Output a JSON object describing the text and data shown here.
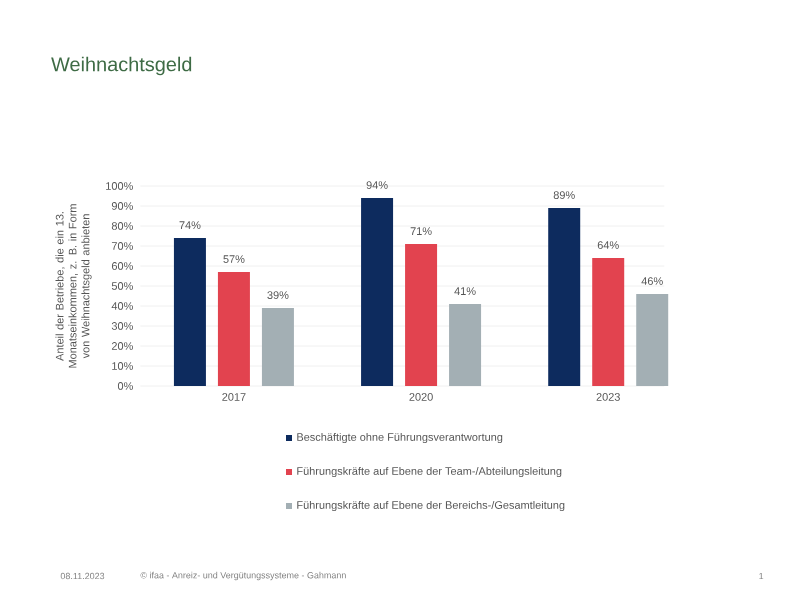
{
  "chart_data": {
    "type": "bar",
    "title": "Weihnachtsgeld",
    "ylabel": "Anteil der Betriebe, die ein 13. Monatseinkommen, z. B. in Form von Weihnachtsgeld anbieten",
    "categories": [
      "2017",
      "2020",
      "2023"
    ],
    "series": [
      {
        "name": "Beschäftigte ohne Führungsverantwortung",
        "color": "#0d2b5e",
        "values": [
          74,
          94,
          89
        ],
        "value_labels": [
          "74%",
          "94%",
          "89%"
        ]
      },
      {
        "name": "Führungskräfte auf Ebene der Team-/Abteilungsleitung",
        "color": "#e2434f",
        "values": [
          57,
          71,
          64
        ],
        "value_labels": [
          "57%",
          "71%",
          "64%"
        ]
      },
      {
        "name": "Führungskräfte auf Ebene der Bereichs-/Gesamtleitung",
        "color": "#a3afb4",
        "values": [
          39,
          41,
          46
        ],
        "value_labels": [
          "39%",
          "41%",
          "46%"
        ]
      }
    ],
    "ylim": [
      0,
      100
    ],
    "yticks": [
      {
        "value": 0,
        "label": "0%"
      },
      {
        "value": 10,
        "label": "10%"
      },
      {
        "value": 20,
        "label": "20%"
      },
      {
        "value": 30,
        "label": "30%"
      },
      {
        "value": 40,
        "label": "40%"
      },
      {
        "value": 50,
        "label": "50%"
      },
      {
        "value": 60,
        "label": "60%"
      },
      {
        "value": 70,
        "label": "70%"
      },
      {
        "value": 80,
        "label": "80%"
      },
      {
        "value": 90,
        "label": "90%"
      },
      {
        "value": 100,
        "label": "100%"
      }
    ],
    "grid": "y",
    "legend": "bottom",
    "annotations": [
      "08.11.2023",
      "© ifaa - Anreiz- und Vergütungssysteme - Gahmann",
      "1"
    ]
  }
}
